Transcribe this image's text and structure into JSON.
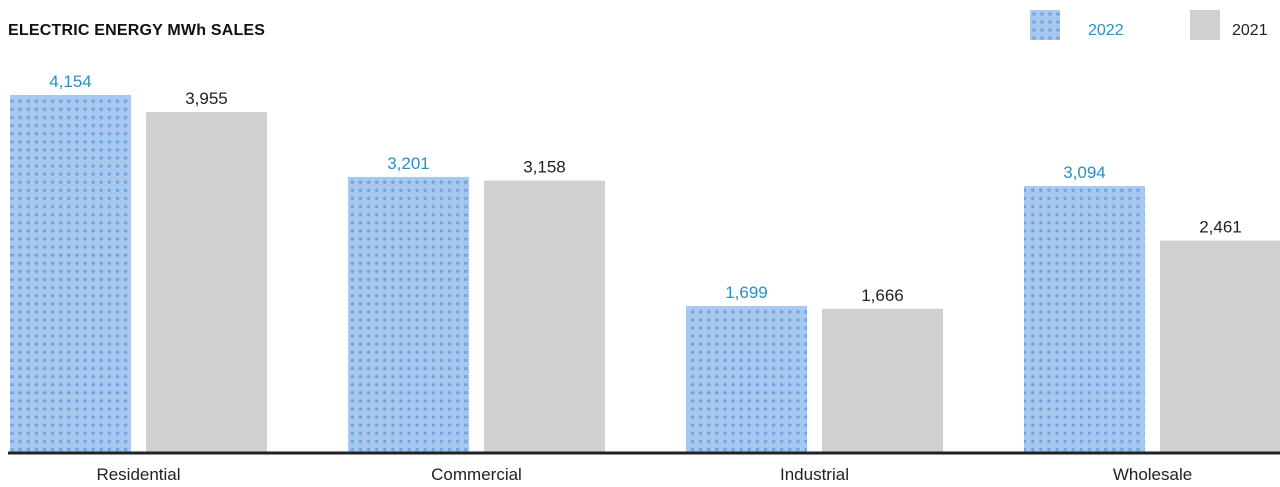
{
  "chart_data": {
    "type": "bar",
    "title": "ELECTRIC ENERGY MWh SALES",
    "categories": [
      "Residential",
      "Commercial",
      "Industrial",
      "Wholesale"
    ],
    "series": [
      {
        "name": "2022",
        "values": [
          4154,
          3201,
          1699,
          3094
        ],
        "labels": [
          "4,154",
          "3,201",
          "1,699",
          "3,094"
        ],
        "color": "#a8c8ee",
        "dot_color": "#6fa6e4",
        "label_color": "#2a8fc4",
        "pattern": "dots"
      },
      {
        "name": "2021",
        "values": [
          3955,
          3158,
          1666,
          2461
        ],
        "labels": [
          "3,955",
          "3,158",
          "1,666",
          "2,461"
        ],
        "color": "#d0d0d2",
        "label_color": "#222222",
        "pattern": "solid"
      }
    ],
    "ylim": [
      0,
      4154
    ],
    "xlabel": "",
    "ylabel": "",
    "legend_position": "top-right",
    "grid": false,
    "baseline_color": "#222222"
  }
}
